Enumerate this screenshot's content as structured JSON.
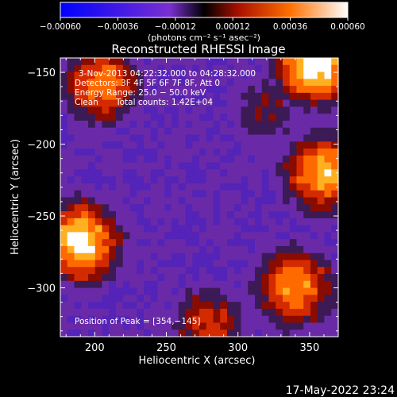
{
  "chart_data": {
    "type": "heatmap",
    "title": "Reconstructed RHESSI Image",
    "xlabel": "Heliocentric X (arcsec)",
    "ylabel": "Heliocentric Y (arcsec)",
    "xlim": [
      176,
      370
    ],
    "ylim": [
      -334,
      -140
    ],
    "x_ticks": [
      "200",
      "250",
      "300",
      "350"
    ],
    "y_ticks": [
      "−150",
      "−200",
      "−250",
      "−300"
    ],
    "colorbar": {
      "range": [
        -0.0006,
        0.0006
      ],
      "tick_labels": [
        "−0.00060",
        "−0.00036",
        "−0.00012",
        "0.00012",
        "0.00036",
        "0.00060"
      ],
      "unit_label": "(photons cm⁻² s⁻¹ asec⁻²)"
    },
    "annotations": {
      "time_range": "3‑Nov‑2013 04:22:32.000 to 04:28:32.000",
      "detectors": "Detectors: 3F 4F 5F 6F 7F 8F, Att 0",
      "energy": "Energy Range: 25.0 − 50.0 keV",
      "clean": "Clean",
      "total_counts": "Total counts: 1.42E+04",
      "peak": "Position of Peak = [354,−145]"
    },
    "hot_regions": [
      {
        "x": 354,
        "y": -145,
        "level": 1.0
      },
      {
        "x": 190,
        "y": -268,
        "level": 0.95
      },
      {
        "x": 205,
        "y": -158,
        "level": 0.75
      },
      {
        "x": 360,
        "y": -220,
        "level": 0.85
      },
      {
        "x": 340,
        "y": -300,
        "level": 0.8
      },
      {
        "x": 280,
        "y": -325,
        "level": 0.6
      },
      {
        "x": 320,
        "y": -175,
        "level": 0.45
      }
    ]
  },
  "footer": {
    "date": "17‑May‑2022 23:24"
  }
}
